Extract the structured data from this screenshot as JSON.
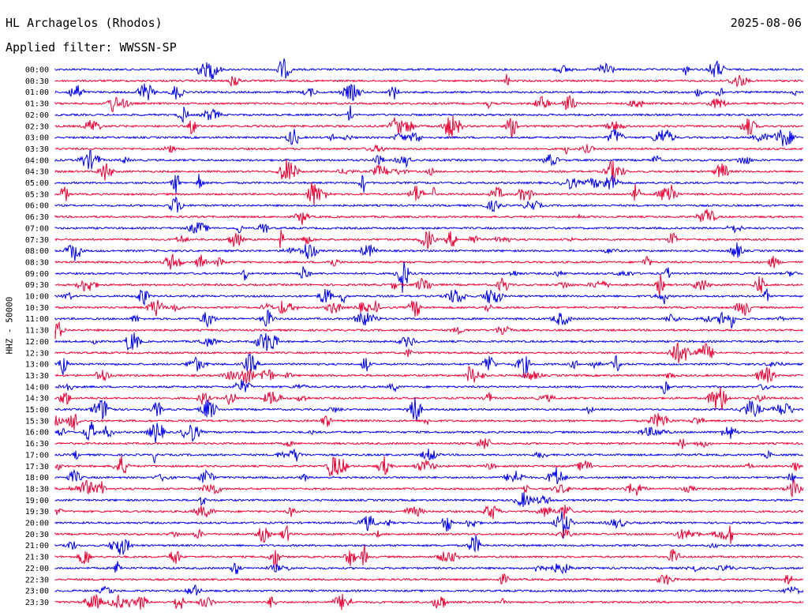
{
  "header": {
    "station": "HL Archagelos (Rhodos)",
    "date": "2025-08-06",
    "filter": "Applied filter: WWSSN-SP"
  },
  "side_label": "HHZ - 50000",
  "colors": {
    "blue": "#0000ee",
    "red": "#ee0033"
  },
  "rows": [
    {
      "label": "00:00"
    },
    {
      "label": "00:30"
    },
    {
      "label": "01:00"
    },
    {
      "label": "01:30"
    },
    {
      "label": "02:00"
    },
    {
      "label": "02:30"
    },
    {
      "label": "03:00"
    },
    {
      "label": "03:30"
    },
    {
      "label": "04:00"
    },
    {
      "label": "04:30"
    },
    {
      "label": "05:00"
    },
    {
      "label": "05:30"
    },
    {
      "label": "06:00"
    },
    {
      "label": "06:30"
    },
    {
      "label": "07:00"
    },
    {
      "label": "07:30"
    },
    {
      "label": "08:00"
    },
    {
      "label": "08:30"
    },
    {
      "label": "09:00"
    },
    {
      "label": "09:30"
    },
    {
      "label": "10:00"
    },
    {
      "label": "10:30"
    },
    {
      "label": "11:00"
    },
    {
      "label": "11:30"
    },
    {
      "label": "12:00"
    },
    {
      "label": "12:30"
    },
    {
      "label": "13:00"
    },
    {
      "label": "13:30"
    },
    {
      "label": "14:00"
    },
    {
      "label": "14:30"
    },
    {
      "label": "15:00"
    },
    {
      "label": "15:30"
    },
    {
      "label": "16:00"
    },
    {
      "label": "16:30"
    },
    {
      "label": "17:00"
    },
    {
      "label": "17:30"
    },
    {
      "label": "18:00"
    },
    {
      "label": "18:30"
    },
    {
      "label": "19:00"
    },
    {
      "label": "19:30"
    },
    {
      "label": "20:00"
    },
    {
      "label": "20:30"
    },
    {
      "label": "21:00"
    },
    {
      "label": "21:30"
    },
    {
      "label": "22:00"
    },
    {
      "label": "22:30"
    },
    {
      "label": "23:00"
    },
    {
      "label": "23:30"
    }
  ]
}
